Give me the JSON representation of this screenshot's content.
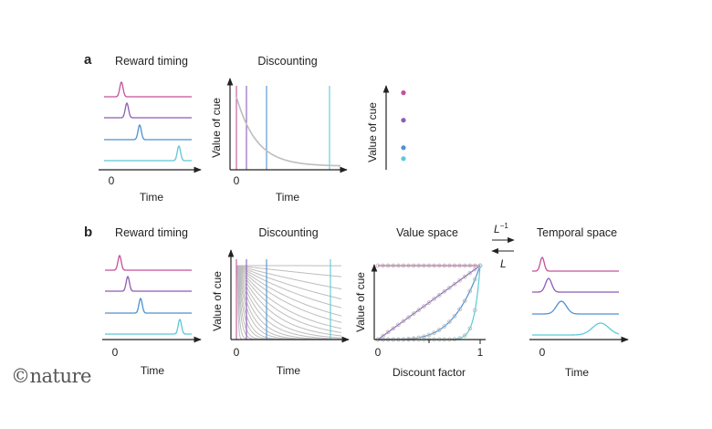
{
  "colors": {
    "trace1": "#c4519a",
    "trace2": "#8e5bb5",
    "trace3": "#4f91cf",
    "trace4": "#5cc8d8",
    "curve": "#bdbdbd",
    "axis": "#222222"
  },
  "panel_a": {
    "letter": "a",
    "reward_timing": {
      "title": "Reward timing",
      "tick": "0",
      "xlabel": "Time"
    },
    "discounting": {
      "title": "Discounting",
      "tick": "0",
      "xlabel": "Time",
      "ylabel": "Value of cue"
    },
    "values": {
      "ylabel": "Value of cue",
      "points": [
        0.9,
        0.55,
        0.2,
        0.06
      ]
    }
  },
  "panel_b": {
    "letter": "b",
    "reward_timing": {
      "title": "Reward timing",
      "tick": "0",
      "xlabel": "Time"
    },
    "discounting": {
      "title": "Discounting",
      "tick": "0",
      "xlabel": "Time",
      "ylabel": "Value of cue"
    },
    "value_space": {
      "title": "Value space",
      "ylabel": "Value of cue",
      "xlabel": "Discount factor",
      "tick_min": "0",
      "tick_max": "1"
    },
    "transform": {
      "forward": "L",
      "forward_sup": "−1",
      "backward": "L"
    },
    "temporal_space": {
      "title": "Temporal space",
      "tick": "0",
      "xlabel": "Time"
    }
  },
  "logo": "©nature"
}
